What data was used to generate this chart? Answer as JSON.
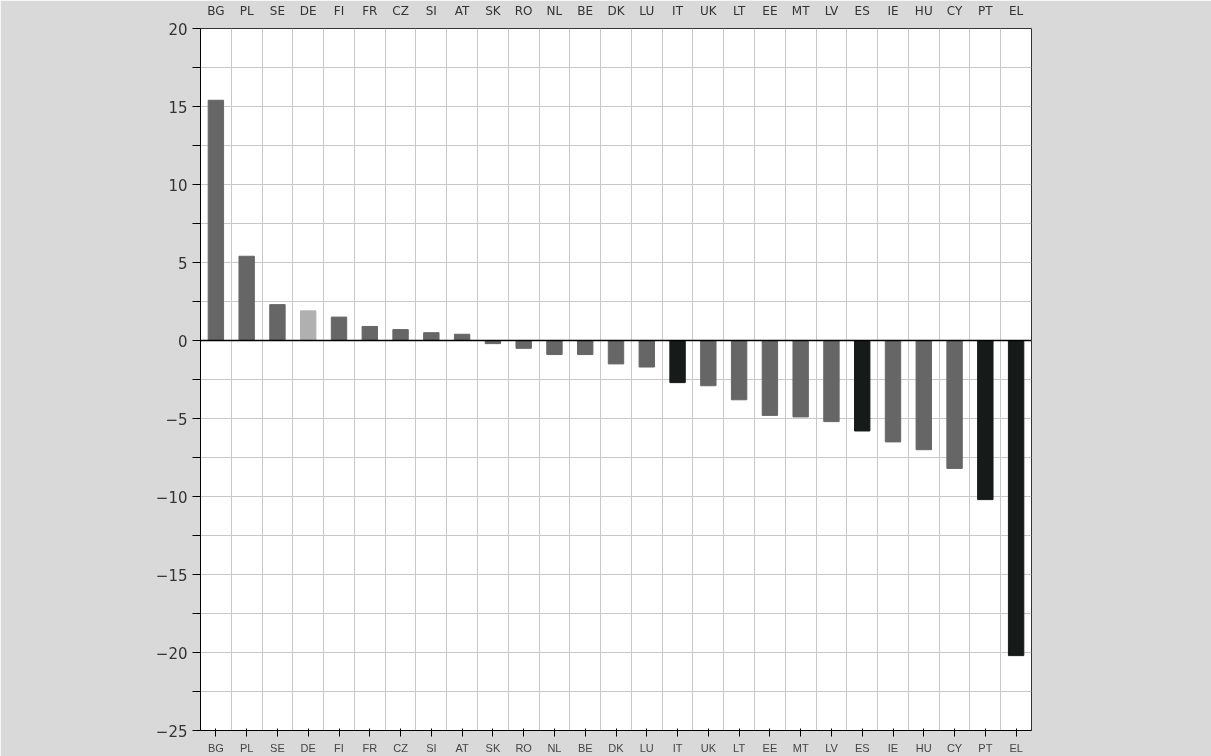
{
  "chart_data": {
    "type": "bar",
    "categories": [
      "BG",
      "PL",
      "SE",
      "DE",
      "FI",
      "FR",
      "CZ",
      "SI",
      "AT",
      "SK",
      "RO",
      "NL",
      "BE",
      "DK",
      "LU",
      "IT",
      "UK",
      "LT",
      "EE",
      "MT",
      "LV",
      "ES",
      "IE",
      "HU",
      "CY",
      "PT",
      "EL"
    ],
    "values": [
      15.4,
      5.4,
      2.3,
      1.9,
      1.5,
      0.9,
      0.7,
      0.5,
      0.4,
      -0.2,
      -0.5,
      -0.9,
      -0.9,
      -1.5,
      -1.7,
      -2.7,
      -2.9,
      -3.8,
      -4.8,
      -4.9,
      -5.2,
      -5.8,
      -6.5,
      -7.0,
      -8.2,
      -10.2,
      -20.2
    ],
    "colors": [
      "#666666",
      "#666666",
      "#666666",
      "#b0b0b0",
      "#666666",
      "#666666",
      "#666666",
      "#666666",
      "#666666",
      "#666666",
      "#666666",
      "#666666",
      "#666666",
      "#666666",
      "#666666",
      "#161a18",
      "#666666",
      "#666666",
      "#666666",
      "#666666",
      "#666666",
      "#161a18",
      "#666666",
      "#666666",
      "#666666",
      "#161a18",
      "#161a18"
    ],
    "ylim": [
      -25,
      20
    ],
    "yticks": [
      {
        "value": -25,
        "label": "−25"
      },
      {
        "value": -22.5,
        "label": null
      },
      {
        "value": -20,
        "label": "−20"
      },
      {
        "value": -17.5,
        "label": null
      },
      {
        "value": -15,
        "label": "−15"
      },
      {
        "value": -12.5,
        "label": null
      },
      {
        "value": -10,
        "label": "−10"
      },
      {
        "value": -7.5,
        "label": null
      },
      {
        "value": -5,
        "label": "−5"
      },
      {
        "value": -2.5,
        "label": null
      },
      0,
      {
        "value": 2.5,
        "label": null
      },
      5,
      {
        "value": 7.5,
        "label": null
      },
      10,
      {
        "value": 12.5,
        "label": null
      },
      15,
      {
        "value": 17.5,
        "label": null
      },
      20
    ],
    "ref_lines": [
      {
        "axis": "y",
        "value": 0,
        "label": null,
        "color": "#000000"
      }
    ],
    "grid": true
  }
}
